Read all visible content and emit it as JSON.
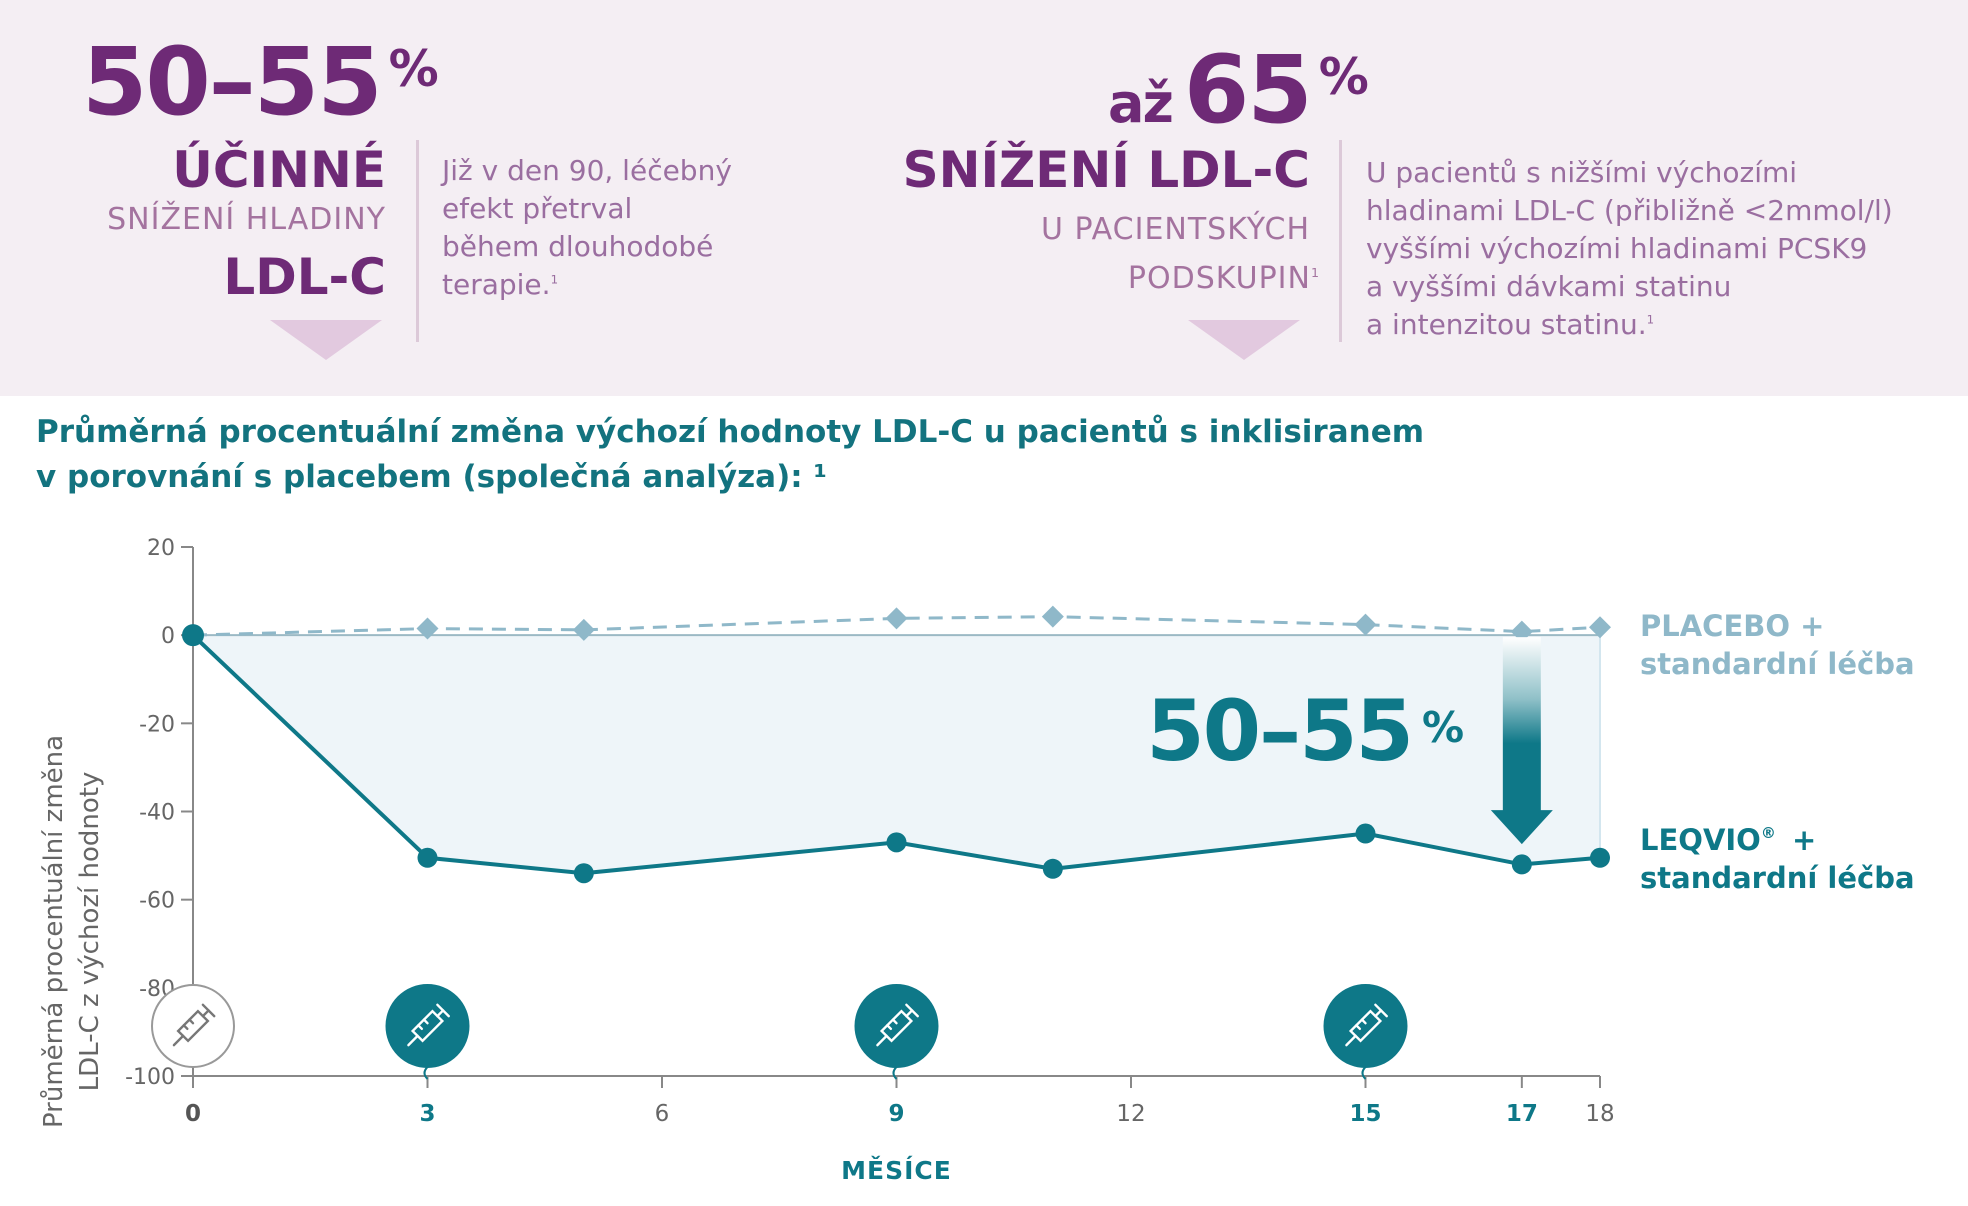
{
  "banner": {
    "left": {
      "big_number": "50–55",
      "big_pct": "%",
      "headline": "ÚČINNÉ",
      "sub": "SNÍŽENÍ HLADINY",
      "headline2": "LDL-C",
      "note_lines": [
        "Již v den 90, léčebný",
        "efekt přetrval",
        "během dlouhodobé",
        "terapie."
      ],
      "note_sup": "1"
    },
    "right": {
      "big_prefix": "až",
      "big_number": "65",
      "big_pct": "%",
      "headline": "SNÍŽENÍ LDL-C",
      "sub_lines": [
        "U PACIENTSKÝCH",
        "PODSKUPIN"
      ],
      "sub_sup": "1",
      "note_lines": [
        "U pacientů s nižšími výchozími",
        "hladinami LDL-C (přibližně <2mmol/l)",
        "vyššími výchozími hladinami PCSK9",
        "a vyššími dávkami statinu",
        "a intenzitou statinu."
      ],
      "note_sup": "1"
    }
  },
  "chart_title_lines": [
    "Průměrná procentuální změna výchozí hodnoty LDL-C u pacientů s inklisiranem",
    "v porovnání s placebem (společná analýza): ¹"
  ],
  "colors": {
    "purple": "#6e2a76",
    "teal": "#0e7888",
    "placebo": "#8fb8c9",
    "fill": "#eef5f9"
  },
  "icons": [
    "syringe-icon"
  ],
  "chart_data": {
    "type": "line",
    "title": "Průměrná procentuální změna výchozí hodnoty LDL-C u pacientů s inklisiranem v porovnání s placebem (společná analýza): ¹",
    "xlabel": "MĚSÍCE",
    "ylabel_lines": [
      "Průměrná procentuální změna",
      "LDL-C z výchozí  hodnoty"
    ],
    "xlim": [
      0,
      18
    ],
    "ylim": [
      -100,
      20
    ],
    "yticks": [
      20,
      0,
      -20,
      -40,
      -60,
      -80,
      -100
    ],
    "xticks": [
      {
        "value": 0,
        "label": "0",
        "highlight": true,
        "dose": false
      },
      {
        "value": 3,
        "label": "3",
        "highlight": true,
        "dose": true
      },
      {
        "value": 6,
        "label": "6",
        "highlight": false,
        "dose": false
      },
      {
        "value": 9,
        "label": "9",
        "highlight": true,
        "dose": true
      },
      {
        "value": 12,
        "label": "12",
        "highlight": false,
        "dose": false
      },
      {
        "value": 15,
        "label": "15",
        "highlight": true,
        "dose": true
      },
      {
        "value": 17,
        "label": "17",
        "highlight": true,
        "dose": false
      },
      {
        "value": 18,
        "label": "18",
        "highlight": false,
        "dose": false
      }
    ],
    "series": [
      {
        "name": "PLACEBO + standardní léčba",
        "label_lines": [
          "PLACEBO +",
          "standardní léčba"
        ],
        "style": "dashed-diamond",
        "x": [
          0,
          3,
          5,
          9,
          11,
          15,
          17,
          18
        ],
        "y": [
          0,
          1.5,
          1.2,
          3.8,
          4.2,
          2.4,
          0.8,
          1.8
        ]
      },
      {
        "name": "LEQVIO® + standardní léčba",
        "label_lines": [
          "LEQVIO",
          "standardní léčba"
        ],
        "label_mark": "®",
        "label_plus": "+",
        "style": "solid-circle",
        "x": [
          0,
          3,
          5,
          9,
          11,
          15,
          17,
          18
        ],
        "y": [
          0,
          -50.5,
          -54,
          -47,
          -53,
          -45,
          -52,
          -50.5
        ]
      }
    ],
    "annotation": {
      "text": "50–55",
      "pct": "%",
      "at_month": 17
    }
  }
}
